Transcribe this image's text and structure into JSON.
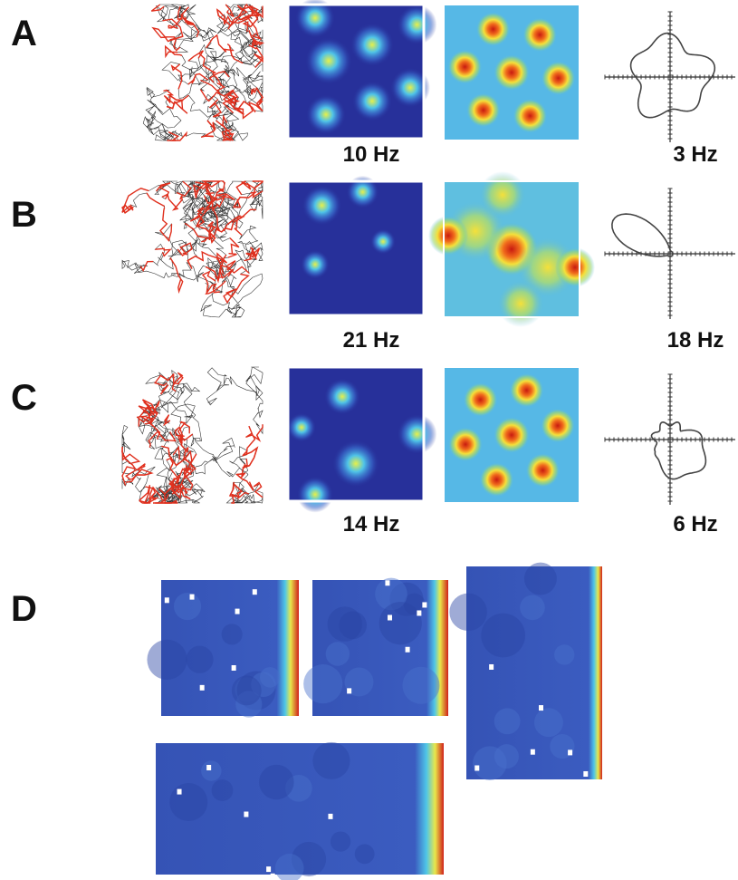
{
  "panels": [
    {
      "label": "A",
      "rate_map_peak": "10 Hz",
      "directional_peak": "3 Hz"
    },
    {
      "label": "B",
      "rate_map_peak": "21 Hz",
      "directional_peak": "18 Hz"
    },
    {
      "label": "C",
      "rate_map_peak": "14 Hz",
      "directional_peak": "6 Hz"
    }
  ],
  "panel_d": {
    "label": "D"
  }
}
